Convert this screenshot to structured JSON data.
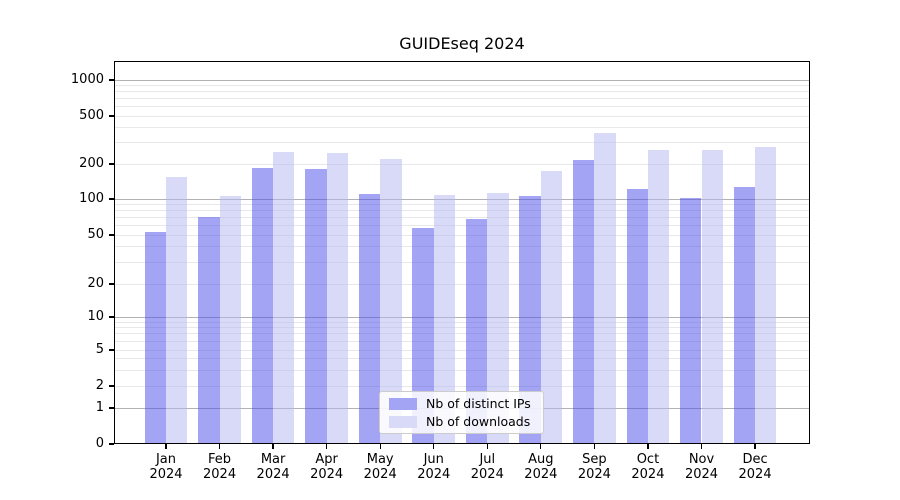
{
  "chart_data": {
    "type": "bar",
    "title": "GUIDEseq 2024",
    "categories": [
      "Jan 2024",
      "Feb 2024",
      "Mar 2024",
      "Apr 2024",
      "May 2024",
      "Jun 2024",
      "Jul 2024",
      "Aug 2024",
      "Sep 2024",
      "Oct 2024",
      "Nov 2024",
      "Dec 2024"
    ],
    "series": [
      {
        "name": "Nb of distinct IPs",
        "color": "#a4a4f5",
        "values": [
          53,
          71,
          183,
          182,
          110,
          57,
          68,
          106,
          217,
          121,
          101,
          127
        ]
      },
      {
        "name": "Nb of downloads",
        "color": "#d9d9f8",
        "values": [
          155,
          106,
          250,
          246,
          218,
          108,
          113,
          173,
          362,
          260,
          260,
          276
        ]
      }
    ],
    "xlabel": "",
    "ylabel": "",
    "yscale": "symlog",
    "yticks": [
      0,
      1,
      2,
      5,
      10,
      20,
      50,
      100,
      200,
      500,
      1000
    ],
    "ylim": [
      0,
      1400
    ],
    "grid": true,
    "legend_position": "lower center inside"
  }
}
